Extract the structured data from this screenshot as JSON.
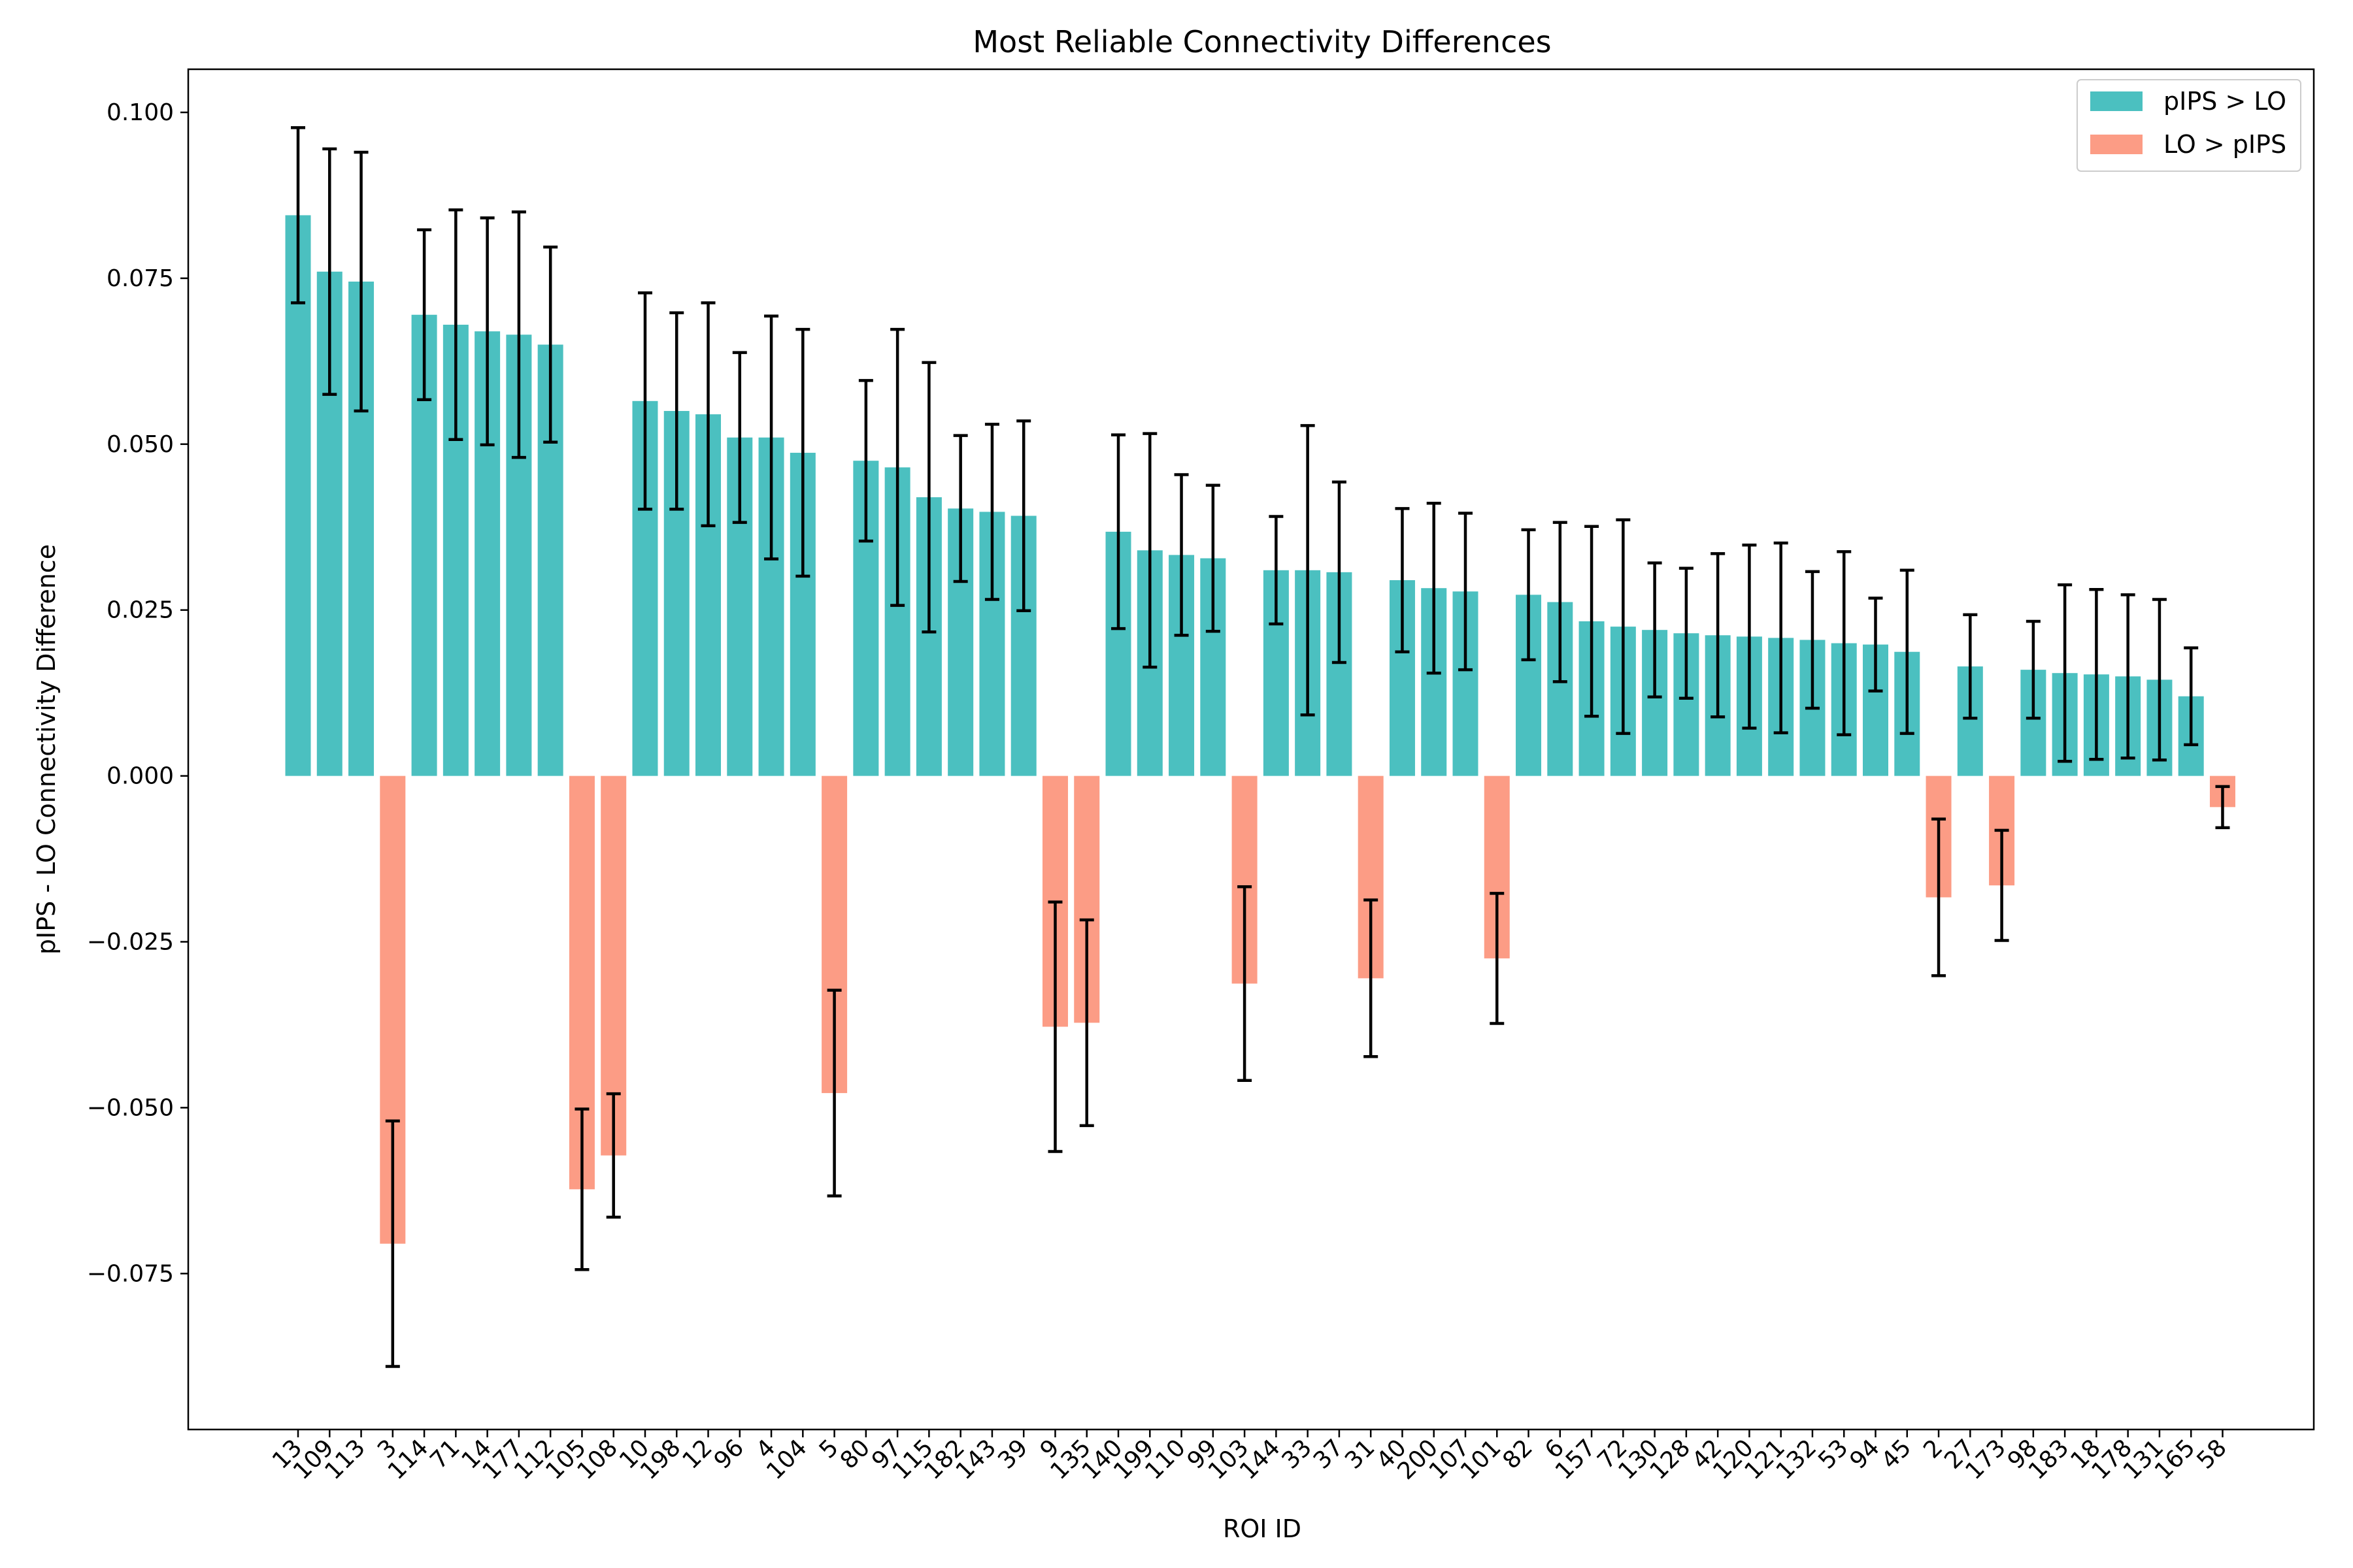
{
  "chart_data": {
    "type": "bar",
    "title": "Most Reliable Connectivity Differences",
    "xlabel": "ROI ID",
    "ylabel": "pIPS - LO Connectivity Difference",
    "ylim": [
      -0.0985,
      0.1065
    ],
    "yticks": [
      0.1,
      0.075,
      0.05,
      0.025,
      0.0,
      -0.025,
      -0.05,
      -0.075
    ],
    "ytick_labels": [
      "0.100",
      "0.075",
      "0.050",
      "0.025",
      "0.000",
      "−0.025",
      "−0.050",
      "−0.075"
    ],
    "grid": false,
    "legend_position": "top-right",
    "colors": {
      "positive": "#4bc0c0",
      "negative": "#fc9c85",
      "error": "#000000"
    },
    "legend": [
      {
        "label": "pIPS > LO",
        "color": "#4bc0c0"
      },
      {
        "label": "LO > pIPS",
        "color": "#fc9c85"
      }
    ],
    "categories": [
      "13",
      "109",
      "113",
      "3",
      "114",
      "71",
      "14",
      "177",
      "112",
      "105",
      "108",
      "10",
      "198",
      "12",
      "96",
      "4",
      "104",
      "5",
      "80",
      "97",
      "115",
      "182",
      "143",
      "39",
      "9",
      "135",
      "140",
      "199",
      "110",
      "99",
      "103",
      "144",
      "33",
      "37",
      "31",
      "40",
      "200",
      "107",
      "101",
      "82",
      "6",
      "157",
      "72",
      "130",
      "128",
      "42",
      "120",
      "121",
      "132",
      "53",
      "94",
      "45",
      "2",
      "27",
      "173",
      "98",
      "183",
      "18",
      "178",
      "131",
      "165",
      "58"
    ],
    "values": [
      0.0845,
      0.076,
      0.0745,
      -0.0705,
      0.0695,
      0.068,
      0.067,
      0.0665,
      0.065,
      -0.0623,
      -0.0572,
      0.0565,
      0.055,
      0.0545,
      0.051,
      0.051,
      0.0487,
      -0.0478,
      0.0475,
      0.0465,
      0.042,
      0.0403,
      0.0398,
      0.0392,
      -0.0378,
      -0.0372,
      0.0368,
      0.034,
      0.0333,
      0.0328,
      -0.0313,
      0.031,
      0.031,
      0.0307,
      -0.0305,
      0.0295,
      0.0283,
      0.0278,
      -0.0275,
      0.0273,
      0.0262,
      0.0233,
      0.0225,
      0.022,
      0.0215,
      0.0212,
      0.021,
      0.0208,
      0.0205,
      0.02,
      0.0198,
      0.0187,
      -0.0183,
      0.0165,
      -0.0165,
      0.016,
      0.0155,
      0.0153,
      0.015,
      0.0145,
      0.012,
      -0.0047
    ],
    "errors": [
      0.0132,
      0.0185,
      0.0195,
      0.0185,
      0.0128,
      0.0173,
      0.0171,
      0.0185,
      0.0147,
      0.0121,
      0.0093,
      0.0163,
      0.0148,
      0.0168,
      0.0128,
      0.0183,
      0.0186,
      0.0155,
      0.0121,
      0.0208,
      0.0203,
      0.011,
      0.0132,
      0.0143,
      0.0188,
      0.0155,
      0.0146,
      0.0176,
      0.0121,
      0.011,
      0.0146,
      0.0081,
      0.0218,
      0.0136,
      0.0118,
      0.0108,
      0.0128,
      0.0118,
      0.0098,
      0.0098,
      0.012,
      0.0143,
      0.0161,
      0.0101,
      0.0098,
      0.0123,
      0.0138,
      0.0143,
      0.0103,
      0.0138,
      0.007,
      0.0123,
      0.0118,
      0.0078,
      0.0083,
      0.0073,
      0.0133,
      0.0128,
      0.0123,
      0.0121,
      0.0073,
      0.0031
    ]
  }
}
